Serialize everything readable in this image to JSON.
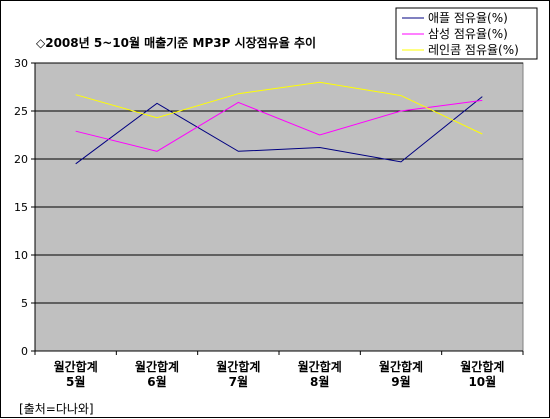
{
  "chart_data": {
    "type": "line",
    "title": "◇2008년 5~10월 매출기준 MP3P 시장점유율 추이",
    "categories": [
      [
        "월간합계",
        "5월"
      ],
      [
        "월간합계",
        "6월"
      ],
      [
        "월간합계",
        "7월"
      ],
      [
        "월간합계",
        "8월"
      ],
      [
        "월간합계",
        "9월"
      ],
      [
        "월간합계",
        "10월"
      ]
    ],
    "series": [
      {
        "name": "애플 점유율(%)",
        "color": "#000080",
        "values": [
          19.5,
          25.8,
          20.8,
          21.2,
          19.7,
          26.5
        ]
      },
      {
        "name": "삼성 점유율(%)",
        "color": "#ff00ff",
        "values": [
          22.9,
          20.8,
          25.9,
          22.5,
          25.0,
          26.1
        ]
      },
      {
        "name": "레인콤 점유율(%)",
        "color": "#ffff00",
        "values": [
          26.7,
          24.3,
          26.8,
          28.0,
          26.6,
          22.6
        ]
      }
    ],
    "ylim": [
      0,
      30
    ],
    "yticks": [
      0,
      5,
      10,
      15,
      20,
      25,
      30
    ],
    "grid": true,
    "plot_background": "#c0c0c0",
    "legend_position": "top-right"
  },
  "source_note": "[출처=다나와]"
}
